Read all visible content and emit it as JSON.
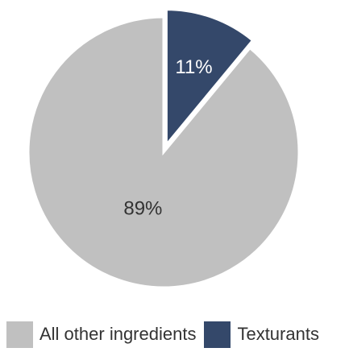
{
  "chart_data": {
    "type": "pie",
    "slices": [
      {
        "name": "All other ingredients",
        "value": 89,
        "label": "89%",
        "color": "#c0c0c0",
        "label_color": "#333333",
        "exploded": false
      },
      {
        "name": "Texturants",
        "value": 11,
        "label": "11%",
        "color": "#34486a",
        "label_color": "#ffffff",
        "exploded": true
      }
    ],
    "legend": {
      "position": "bottom",
      "entries": [
        "All other ingredients",
        "Texturants"
      ]
    }
  }
}
